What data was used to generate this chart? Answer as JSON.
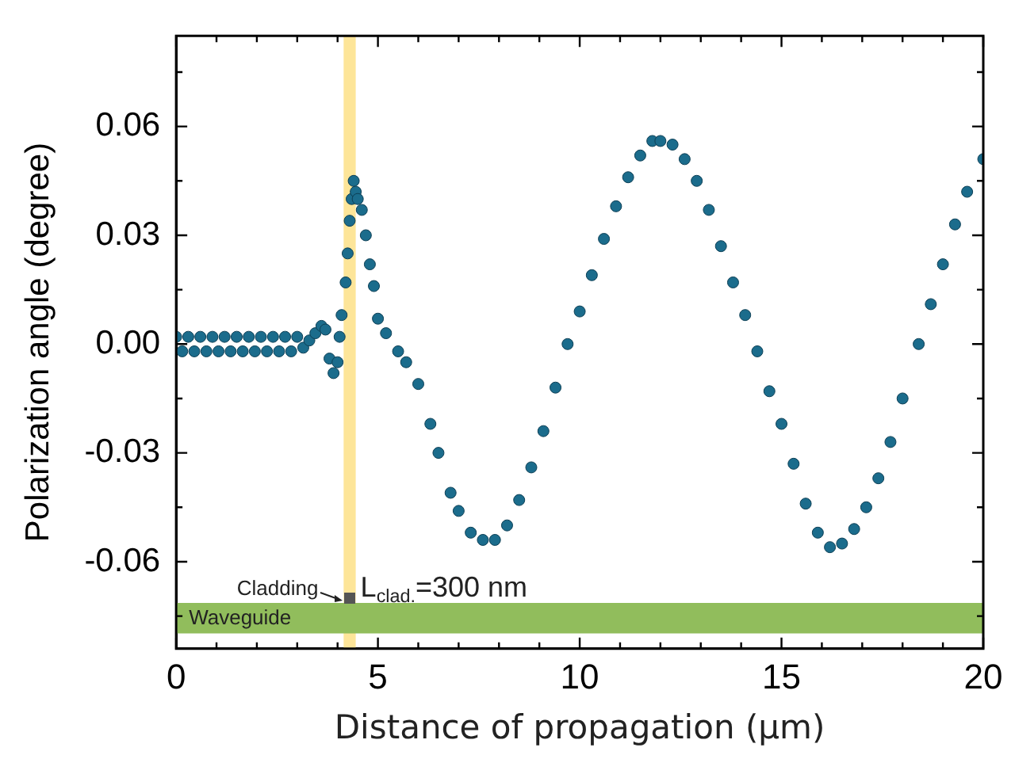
{
  "chart_data": {
    "type": "scatter",
    "xlabel": "Distance of propagation (μm)",
    "ylabel": "Polarization angle (degree)",
    "xlim": [
      0,
      20
    ],
    "xticks": [
      0,
      5,
      10,
      15,
      20
    ],
    "ylim": [
      -0.084,
      0.085
    ],
    "yticks": [
      -0.06,
      -0.03,
      {
        "value": 0,
        "label": "0.00"
      },
      0.03,
      0.06
    ],
    "grid": false,
    "legend": false,
    "marker": "circle",
    "series": [
      {
        "color": "#1b6c8c",
        "x": [
          0,
          0.15,
          0.3,
          0.45,
          0.6,
          0.75,
          0.9,
          1.05,
          1.2,
          1.35,
          1.5,
          1.65,
          1.8,
          1.95,
          2.1,
          2.25,
          2.4,
          2.55,
          2.7,
          2.85,
          3.0,
          3.15,
          3.3,
          3.45,
          3.6,
          3.7,
          3.8,
          3.9,
          4.0,
          4.05,
          4.1,
          4.2,
          4.25,
          4.3,
          4.35,
          4.4,
          4.45,
          4.5,
          4.6,
          4.7,
          4.8,
          4.9,
          5.0,
          5.2,
          5.5,
          5.7,
          6.0,
          6.3,
          6.5,
          6.8,
          7.0,
          7.3,
          7.6,
          7.9,
          8.2,
          8.5,
          8.8,
          9.1,
          9.4,
          9.7,
          10.0,
          10.3,
          10.6,
          10.9,
          11.2,
          11.5,
          11.8,
          12.0,
          12.3,
          12.6,
          12.9,
          13.2,
          13.5,
          13.8,
          14.1,
          14.4,
          14.7,
          15.0,
          15.3,
          15.6,
          15.9,
          16.2,
          16.5,
          16.8,
          17.1,
          17.4,
          17.7,
          18.0,
          18.4,
          18.7,
          19.0,
          19.3,
          19.6,
          20.0
        ],
        "values": [
          0.002,
          -0.002,
          0.002,
          -0.002,
          0.002,
          -0.002,
          0.002,
          -0.002,
          0.002,
          -0.002,
          0.002,
          -0.002,
          0.002,
          -0.002,
          0.002,
          -0.002,
          0.002,
          -0.002,
          0.002,
          -0.002,
          0.002,
          -0.001,
          0.001,
          0.003,
          0.005,
          0.004,
          -0.004,
          -0.008,
          -0.005,
          0.002,
          0.008,
          0.017,
          0.025,
          0.034,
          0.04,
          0.045,
          0.042,
          0.04,
          0.037,
          0.03,
          0.022,
          0.016,
          0.007,
          0.003,
          -0.002,
          -0.005,
          -0.011,
          -0.022,
          -0.03,
          -0.041,
          -0.046,
          -0.052,
          -0.054,
          -0.054,
          -0.05,
          -0.043,
          -0.034,
          -0.024,
          -0.012,
          0.0,
          0.009,
          0.019,
          0.029,
          0.038,
          0.046,
          0.052,
          0.056,
          0.056,
          0.055,
          0.051,
          0.045,
          0.037,
          0.027,
          0.017,
          0.008,
          -0.002,
          -0.013,
          -0.022,
          -0.033,
          -0.044,
          -0.052,
          -0.056,
          -0.055,
          -0.051,
          -0.045,
          -0.037,
          -0.027,
          -0.015,
          0.0,
          0.011,
          0.022,
          0.033,
          0.042,
          0.051
        ]
      }
    ],
    "bands": [
      {
        "axis": "x",
        "from": 4.15,
        "to": 4.45,
        "color": "#fde599"
      },
      {
        "axis": "y",
        "from": -0.0798,
        "to": -0.0714,
        "label": "Waveguide",
        "color": "#91bd5c"
      }
    ],
    "annotations": [
      "Cladding",
      "L$_{clad.}$=300 nm"
    ]
  }
}
